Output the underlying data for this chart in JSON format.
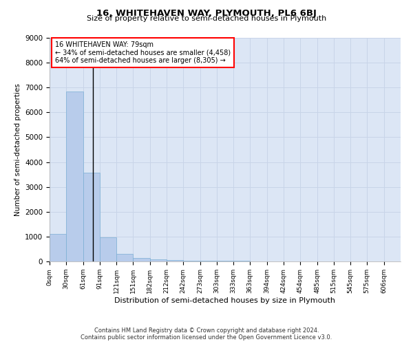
{
  "title_line1": "16, WHITEHAVEN WAY, PLYMOUTH, PL6 6BJ",
  "title_line2": "Size of property relative to semi-detached houses in Plymouth",
  "xlabel": "Distribution of semi-detached houses by size in Plymouth",
  "ylabel": "Number of semi-detached properties",
  "footnote1": "Contains HM Land Registry data © Crown copyright and database right 2024.",
  "footnote2": "Contains public sector information licensed under the Open Government Licence v3.0.",
  "annotation_line1": "16 WHITEHAVEN WAY: 79sqm",
  "annotation_line2": "← 34% of semi-detached houses are smaller (4,458)",
  "annotation_line3": "64% of semi-detached houses are larger (8,305) →",
  "bar_left_edges": [
    0,
    30,
    61,
    91,
    121,
    151,
    182,
    212,
    242,
    273,
    303,
    333,
    363,
    394,
    424,
    454,
    485,
    515,
    545,
    575
  ],
  "bar_widths": [
    30,
    31,
    30,
    30,
    30,
    31,
    30,
    30,
    31,
    30,
    30,
    30,
    31,
    30,
    30,
    31,
    30,
    30,
    30,
    31
  ],
  "bar_heights": [
    1100,
    6850,
    3580,
    980,
    310,
    150,
    75,
    50,
    30,
    30,
    20,
    15,
    10,
    8,
    5,
    4,
    3,
    2,
    1,
    1
  ],
  "tick_labels": [
    "0sqm",
    "30sqm",
    "61sqm",
    "91sqm",
    "121sqm",
    "151sqm",
    "182sqm",
    "212sqm",
    "242sqm",
    "273sqm",
    "303sqm",
    "333sqm",
    "363sqm",
    "394sqm",
    "424sqm",
    "454sqm",
    "485sqm",
    "515sqm",
    "545sqm",
    "575sqm",
    "606sqm"
  ],
  "tick_positions": [
    0,
    30,
    61,
    91,
    121,
    151,
    182,
    212,
    242,
    273,
    303,
    333,
    363,
    394,
    424,
    454,
    485,
    515,
    545,
    575,
    606
  ],
  "bar_color": "#b8cceb",
  "bar_edge_color": "#7aaed4",
  "ylim": [
    0,
    9000
  ],
  "xlim": [
    0,
    636
  ],
  "yticks": [
    0,
    1000,
    2000,
    3000,
    4000,
    5000,
    6000,
    7000,
    8000,
    9000
  ],
  "grid_color": "#c8d4e8",
  "background_color": "#dce6f5",
  "property_line_x": 79,
  "title1_fontsize": 9.5,
  "title2_fontsize": 8,
  "xlabel_fontsize": 8,
  "ylabel_fontsize": 7.5,
  "tick_fontsize": 6.5,
  "ytick_fontsize": 7.5,
  "annot_fontsize": 7,
  "footnote_fontsize": 6
}
